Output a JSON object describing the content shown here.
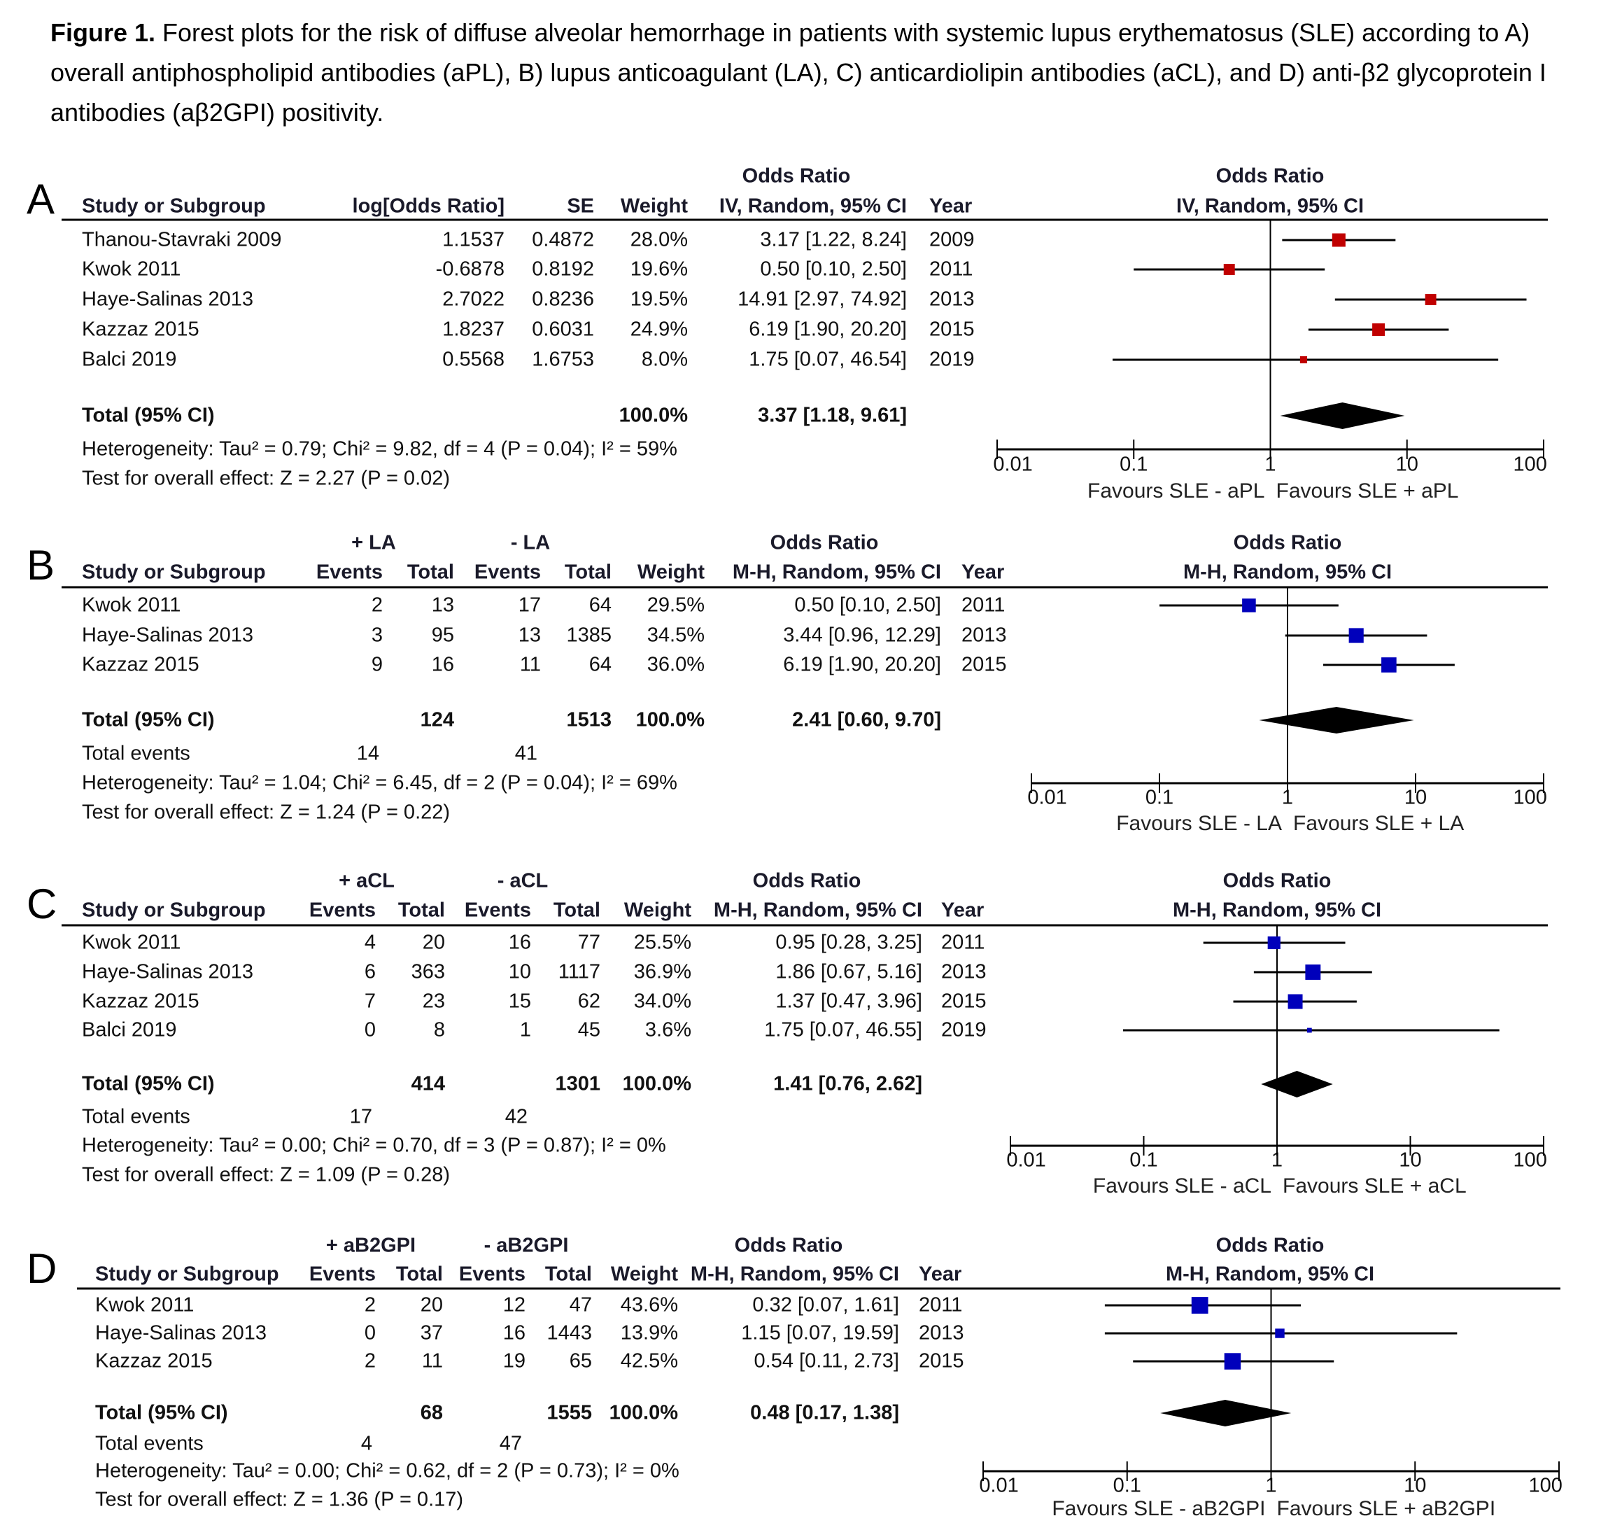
{
  "caption": {
    "label": "Figure 1.",
    "text": " Forest plots for the risk of diffuse alveolar hemorrhage in patients with systemic lupus erythematosus (SLE) according to A) overall antiphospholipid antibodies (aPL), B) lupus anticoagulant (LA), C) anticardiolipin antibodies (aCL), and D) anti-β2 glycoprotein I antibodies (aβ2GPI) positivity."
  },
  "chart_data": [
    {
      "type": "forest",
      "panel": "A",
      "title": "Overall antiphospholipid antibodies (aPL)",
      "columns": [
        "Study or Subgroup",
        "log[Odds Ratio]",
        "SE",
        "Weight",
        "Odds Ratio IV, Random, 95% CI",
        "Year"
      ],
      "header_top": {
        "or": "Odds Ratio"
      },
      "header": {
        "study": "Study or Subgroup",
        "c1": "log[Odds Ratio]",
        "c2": "SE",
        "weight": "Weight",
        "or": "IV, Random, 95% CI",
        "year": "Year"
      },
      "plot_header": {
        "line1": "Odds Ratio",
        "line2": "IV, Random, 95% CI"
      },
      "studies": [
        {
          "name": "Thanou-Stavraki 2009",
          "c1": "1.1537",
          "c2": "0.4872",
          "weight": "28.0%",
          "or_text": "3.17 [1.22, 8.24]",
          "year": "2009",
          "or": 3.17,
          "lo": 1.22,
          "hi": 8.24,
          "w": 28.0
        },
        {
          "name": "Kwok 2011",
          "c1": "-0.6878",
          "c2": "0.8192",
          "weight": "19.6%",
          "or_text": "0.50 [0.10, 2.50]",
          "year": "2011",
          "or": 0.5,
          "lo": 0.1,
          "hi": 2.5,
          "w": 19.6
        },
        {
          "name": "Haye-Salinas 2013",
          "c1": "2.7022",
          "c2": "0.8236",
          "weight": "19.5%",
          "or_text": "14.91 [2.97, 74.92]",
          "year": "2013",
          "or": 14.91,
          "lo": 2.97,
          "hi": 74.92,
          "w": 19.5
        },
        {
          "name": "Kazzaz 2015",
          "c1": "1.8237",
          "c2": "0.6031",
          "weight": "24.9%",
          "or_text": "6.19 [1.90, 20.20]",
          "year": "2015",
          "or": 6.19,
          "lo": 1.9,
          "hi": 20.2,
          "w": 24.9
        },
        {
          "name": "Balci 2019",
          "c1": "0.5568",
          "c2": "1.6753",
          "weight": "8.0%",
          "or_text": "1.75 [0.07, 46.54]",
          "year": "2019",
          "or": 1.75,
          "lo": 0.07,
          "hi": 46.54,
          "w": 8.0
        }
      ],
      "total": {
        "label": "Total (95% CI)",
        "c1": "",
        "c2": "",
        "weight": "100.0%",
        "or_text": "3.37 [1.18, 9.61]",
        "or": 3.37,
        "lo": 1.18,
        "hi": 9.61
      },
      "total_events": null,
      "heterogeneity": "Heterogeneity: Tau² = 0.79; Chi² = 9.82, df = 4 (P = 0.04); I² = 59%",
      "overall_effect": "Test for overall effect: Z = 2.27 (P = 0.02)",
      "x_scale": "log",
      "xlim": [
        0.01,
        100
      ],
      "xticks": [
        0.01,
        0.1,
        1,
        10,
        100
      ],
      "xtick_labels": [
        "0.01",
        "0.1",
        "1",
        "10",
        "100"
      ],
      "favours_left": "Favours SLE - aPL",
      "favours_right": "Favours SLE + aPL",
      "marker_color": "#c00000"
    },
    {
      "type": "forest",
      "panel": "B",
      "title": "Lupus anticoagulant (LA)",
      "header_top": {
        "g1": "+ LA",
        "g2": "- LA",
        "or": "Odds Ratio"
      },
      "header": {
        "study": "Study or Subgroup",
        "e1": "Events",
        "t1": "Total",
        "e2": "Events",
        "t2": "Total",
        "weight": "Weight",
        "or": "M-H, Random, 95% CI",
        "year": "Year"
      },
      "plot_header": {
        "line1": "Odds Ratio",
        "line2": "M-H, Random, 95% CI"
      },
      "studies": [
        {
          "name": "Kwok 2011",
          "e1": "2",
          "t1": "13",
          "e2": "17",
          "t2": "64",
          "weight": "29.5%",
          "or_text": "0.50 [0.10, 2.50]",
          "year": "2011",
          "or": 0.5,
          "lo": 0.1,
          "hi": 2.5,
          "w": 29.5
        },
        {
          "name": "Haye-Salinas 2013",
          "e1": "3",
          "t1": "95",
          "e2": "13",
          "t2": "1385",
          "weight": "34.5%",
          "or_text": "3.44 [0.96, 12.29]",
          "year": "2013",
          "or": 3.44,
          "lo": 0.96,
          "hi": 12.29,
          "w": 34.5
        },
        {
          "name": "Kazzaz 2015",
          "e1": "9",
          "t1": "16",
          "e2": "11",
          "t2": "64",
          "weight": "36.0%",
          "or_text": "6.19 [1.90, 20.20]",
          "year": "2015",
          "or": 6.19,
          "lo": 1.9,
          "hi": 20.2,
          "w": 36.0
        }
      ],
      "total": {
        "label": "Total (95% CI)",
        "t1": "124",
        "t2": "1513",
        "weight": "100.0%",
        "or_text": "2.41 [0.60, 9.70]",
        "or": 2.41,
        "lo": 0.6,
        "hi": 9.7
      },
      "total_events": {
        "label": "Total events",
        "e1": "14",
        "e2": "41"
      },
      "heterogeneity": "Heterogeneity: Tau² = 1.04; Chi² = 6.45, df = 2 (P = 0.04); I² = 69%",
      "overall_effect": "Test for overall effect: Z = 1.24 (P = 0.22)",
      "x_scale": "log",
      "xlim": [
        0.01,
        100
      ],
      "xticks": [
        0.01,
        0.1,
        1,
        10,
        100
      ],
      "xtick_labels": [
        "0.01",
        "0.1",
        "1",
        "10",
        "100"
      ],
      "favours_left": "Favours SLE - LA",
      "favours_right": "Favours SLE + LA",
      "marker_color": "#0000bb"
    },
    {
      "type": "forest",
      "panel": "C",
      "title": "Anticardiolipin antibodies (aCL)",
      "header_top": {
        "g1": "+ aCL",
        "g2": "- aCL",
        "or": "Odds Ratio"
      },
      "header": {
        "study": "Study or Subgroup",
        "e1": "Events",
        "t1": "Total",
        "e2": "Events",
        "t2": "Total",
        "weight": "Weight",
        "or": "M-H, Random, 95% CI",
        "year": "Year"
      },
      "plot_header": {
        "line1": "Odds Ratio",
        "line2": "M-H, Random, 95% CI"
      },
      "studies": [
        {
          "name": "Kwok 2011",
          "e1": "4",
          "t1": "20",
          "e2": "16",
          "t2": "77",
          "weight": "25.5%",
          "or_text": "0.95 [0.28, 3.25]",
          "year": "2011",
          "or": 0.95,
          "lo": 0.28,
          "hi": 3.25,
          "w": 25.5
        },
        {
          "name": "Haye-Salinas 2013",
          "e1": "6",
          "t1": "363",
          "e2": "10",
          "t2": "1117",
          "weight": "36.9%",
          "or_text": "1.86 [0.67, 5.16]",
          "year": "2013",
          "or": 1.86,
          "lo": 0.67,
          "hi": 5.16,
          "w": 36.9
        },
        {
          "name": "Kazzaz 2015",
          "e1": "7",
          "t1": "23",
          "e2": "15",
          "t2": "62",
          "weight": "34.0%",
          "or_text": "1.37 [0.47, 3.96]",
          "year": "2015",
          "or": 1.37,
          "lo": 0.47,
          "hi": 3.96,
          "w": 34.0
        },
        {
          "name": "Balci 2019",
          "e1": "0",
          "t1": "8",
          "e2": "1",
          "t2": "45",
          "weight": "3.6%",
          "or_text": "1.75 [0.07, 46.55]",
          "year": "2019",
          "or": 1.75,
          "lo": 0.07,
          "hi": 46.55,
          "w": 3.6
        }
      ],
      "total": {
        "label": "Total (95% CI)",
        "t1": "414",
        "t2": "1301",
        "weight": "100.0%",
        "or_text": "1.41 [0.76, 2.62]",
        "or": 1.41,
        "lo": 0.76,
        "hi": 2.62
      },
      "total_events": {
        "label": "Total events",
        "e1": "17",
        "e2": "42"
      },
      "heterogeneity": "Heterogeneity: Tau² = 0.00; Chi² = 0.70, df = 3 (P = 0.87); I² = 0%",
      "overall_effect": "Test for overall effect: Z = 1.09 (P = 0.28)",
      "x_scale": "log",
      "xlim": [
        0.01,
        100
      ],
      "xticks": [
        0.01,
        0.1,
        1,
        10,
        100
      ],
      "xtick_labels": [
        "0.01",
        "0.1",
        "1",
        "10",
        "100"
      ],
      "favours_left": "Favours SLE - aCL",
      "favours_right": "Favours SLE + aCL",
      "marker_color": "#0000bb"
    },
    {
      "type": "forest",
      "panel": "D",
      "title": "Anti-β2 glycoprotein I antibodies (aβ2GPI)",
      "header_top": {
        "g1": "+ aB2GPI",
        "g2": "- aB2GPI",
        "or": "Odds Ratio"
      },
      "header": {
        "study": "Study or Subgroup",
        "e1": "Events",
        "t1": "Total",
        "e2": "Events",
        "t2": "Total",
        "weight": "Weight",
        "or": "M-H, Random, 95% CI",
        "year": "Year"
      },
      "plot_header": {
        "line1": "Odds Ratio",
        "line2": "M-H, Random, 95% CI"
      },
      "studies": [
        {
          "name": "Kwok 2011",
          "e1": "2",
          "t1": "20",
          "e2": "12",
          "t2": "47",
          "weight": "43.6%",
          "or_text": "0.32 [0.07, 1.61]",
          "year": "2011",
          "or": 0.32,
          "lo": 0.07,
          "hi": 1.61,
          "w": 43.6
        },
        {
          "name": "Haye-Salinas 2013",
          "e1": "0",
          "t1": "37",
          "e2": "16",
          "t2": "1443",
          "weight": "13.9%",
          "or_text": "1.15 [0.07, 19.59]",
          "year": "2013",
          "or": 1.15,
          "lo": 0.07,
          "hi": 19.59,
          "w": 13.9
        },
        {
          "name": "Kazzaz 2015",
          "e1": "2",
          "t1": "11",
          "e2": "19",
          "t2": "65",
          "weight": "42.5%",
          "or_text": "0.54 [0.11, 2.73]",
          "year": "2015",
          "or": 0.54,
          "lo": 0.11,
          "hi": 2.73,
          "w": 42.5
        }
      ],
      "total": {
        "label": "Total (95% CI)",
        "t1": "68",
        "t2": "1555",
        "weight": "100.0%",
        "or_text": "0.48 [0.17, 1.38]",
        "or": 0.48,
        "lo": 0.17,
        "hi": 1.38
      },
      "total_events": {
        "label": "Total events",
        "e1": "4",
        "e2": "47"
      },
      "heterogeneity": "Heterogeneity: Tau² = 0.00; Chi² = 0.62, df = 2 (P = 0.73); I² = 0%",
      "overall_effect": "Test for overall effect: Z = 1.36 (P = 0.17)",
      "x_scale": "log",
      "xlim": [
        0.01,
        100
      ],
      "xticks": [
        0.01,
        0.1,
        1,
        10,
        100
      ],
      "xtick_labels": [
        "0.01",
        "0.1",
        "1",
        "10",
        "100"
      ],
      "favours_left": "Favours SLE - aB2GPI",
      "favours_right": "Favours SLE + aB2GPI",
      "marker_color": "#0000bb"
    }
  ]
}
